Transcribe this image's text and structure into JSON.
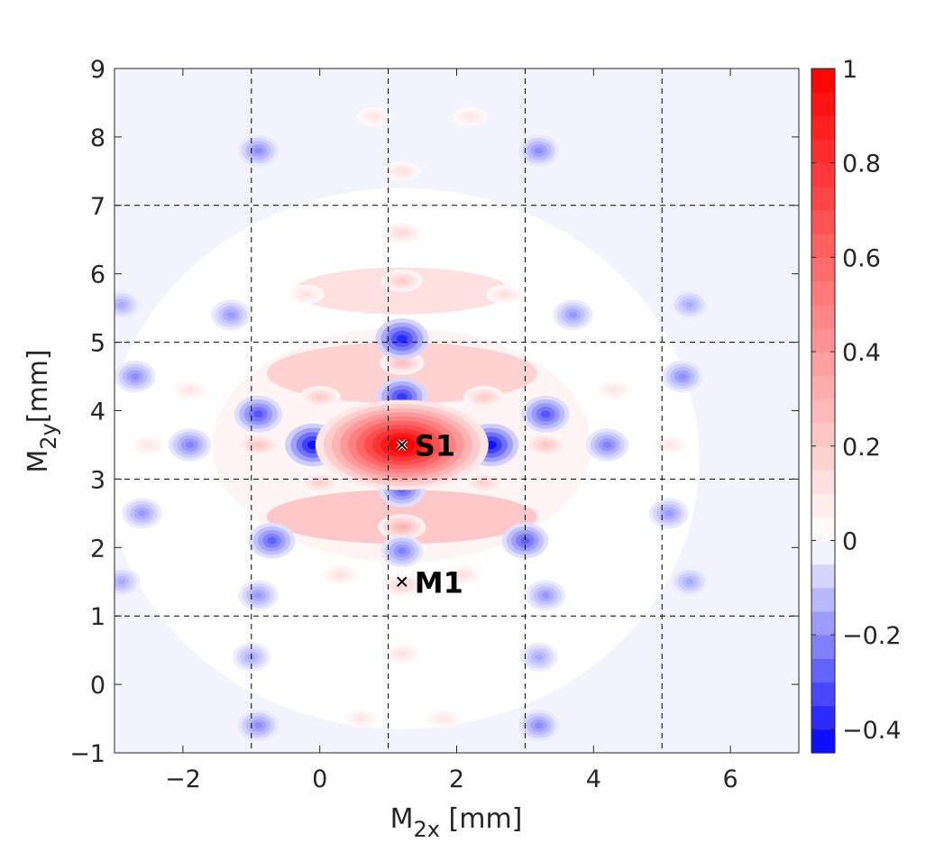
{
  "chart_data": {
    "type": "heatmap",
    "title": "",
    "xlabel": {
      "main": "M",
      "sub": "2x",
      "unit": " [mm]"
    },
    "ylabel": {
      "main": "M",
      "sub": "2y",
      "unit": "[mm]"
    },
    "xlim": [
      -3,
      7
    ],
    "ylim": [
      -1,
      9
    ],
    "xticks": [
      -2,
      0,
      2,
      4,
      6
    ],
    "yticks": [
      -1,
      0,
      1,
      2,
      3,
      4,
      5,
      6,
      7,
      8,
      9
    ],
    "xtick_labels": [
      "−2",
      "0",
      "2",
      "4",
      "6"
    ],
    "ytick_labels": [
      "−1",
      "0",
      "1",
      "2",
      "3",
      "4",
      "5",
      "6",
      "7",
      "8",
      "9"
    ],
    "dashed_grid_x": [
      -1,
      1,
      3,
      5
    ],
    "dashed_grid_y": [
      1,
      3,
      5,
      7
    ],
    "colorbar": {
      "range": [
        -0.45,
        1
      ],
      "ticks": [
        -0.4,
        -0.2,
        0,
        0.2,
        0.4,
        0.6,
        0.8,
        1
      ],
      "tick_labels": [
        "−0.4",
        "−0.2",
        "0",
        "0.2",
        "0.4",
        "0.6",
        "0.8",
        "1"
      ],
      "colormap": "blue-white-red"
    },
    "peak": {
      "x": 1.2,
      "y": 3.5,
      "value": 1
    },
    "markers": [
      {
        "label": "S1",
        "x": 1.2,
        "y": 3.5
      },
      {
        "label": "M1",
        "x": 1.2,
        "y": 1.5
      }
    ],
    "blue_blobs": [
      {
        "x": -0.1,
        "y": 3.5,
        "value": -0.42
      },
      {
        "x": 2.5,
        "y": 3.5,
        "value": -0.42
      },
      {
        "x": 1.2,
        "y": 4.2,
        "value": -0.35
      },
      {
        "x": 1.2,
        "y": 5.05,
        "value": -0.38
      },
      {
        "x": 1.2,
        "y": 2.85,
        "value": -0.28
      },
      {
        "x": 1.2,
        "y": 1.95,
        "value": -0.22
      },
      {
        "x": -0.9,
        "y": 3.95,
        "value": -0.3
      },
      {
        "x": 3.3,
        "y": 3.95,
        "value": -0.3
      },
      {
        "x": -0.7,
        "y": 2.1,
        "value": -0.28
      },
      {
        "x": 3.0,
        "y": 2.1,
        "value": -0.28
      },
      {
        "x": -1.9,
        "y": 3.5,
        "value": -0.22
      },
      {
        "x": 4.2,
        "y": 3.5,
        "value": -0.22
      },
      {
        "x": -2.7,
        "y": 4.5,
        "value": -0.2
      },
      {
        "x": 5.3,
        "y": 4.5,
        "value": -0.2
      },
      {
        "x": -2.6,
        "y": 2.5,
        "value": -0.18
      },
      {
        "x": 5.1,
        "y": 2.5,
        "value": -0.18
      },
      {
        "x": -1.3,
        "y": 5.4,
        "value": -0.18
      },
      {
        "x": 3.7,
        "y": 5.4,
        "value": -0.18
      },
      {
        "x": -0.9,
        "y": 7.8,
        "value": -0.2
      },
      {
        "x": 3.2,
        "y": 7.8,
        "value": -0.2
      },
      {
        "x": -0.9,
        "y": 1.3,
        "value": -0.18
      },
      {
        "x": 3.3,
        "y": 1.3,
        "value": -0.18
      },
      {
        "x": -0.9,
        "y": -0.6,
        "value": -0.2
      },
      {
        "x": 3.2,
        "y": -0.6,
        "value": -0.2
      },
      {
        "x": -2.9,
        "y": 1.5,
        "value": -0.15
      },
      {
        "x": 5.4,
        "y": 1.5,
        "value": -0.15
      },
      {
        "x": -1.0,
        "y": 0.4,
        "value": -0.15
      },
      {
        "x": 3.2,
        "y": 0.4,
        "value": -0.15
      },
      {
        "x": 5.4,
        "y": 5.55,
        "value": -0.15
      },
      {
        "x": -2.9,
        "y": 5.55,
        "value": -0.15
      }
    ],
    "red_blobs": [
      {
        "x": 1.2,
        "y": 4.7,
        "value": 0.25
      },
      {
        "x": 1.2,
        "y": 5.9,
        "value": 0.2
      },
      {
        "x": 1.2,
        "y": 6.6,
        "value": 0.15
      },
      {
        "x": 1.2,
        "y": 2.3,
        "value": 0.3
      },
      {
        "x": 1.2,
        "y": 1.45,
        "value": 0.18
      },
      {
        "x": 1.2,
        "y": 0.45,
        "value": 0.12
      },
      {
        "x": 1.2,
        "y": 7.5,
        "value": 0.12
      },
      {
        "x": -0.9,
        "y": 3.5,
        "value": 0.22
      },
      {
        "x": 3.3,
        "y": 3.5,
        "value": 0.22
      },
      {
        "x": 0.0,
        "y": 4.2,
        "value": 0.2
      },
      {
        "x": 2.4,
        "y": 4.2,
        "value": 0.2
      },
      {
        "x": 0.0,
        "y": 2.95,
        "value": 0.18
      },
      {
        "x": 2.4,
        "y": 2.95,
        "value": 0.18
      },
      {
        "x": -1.9,
        "y": 4.3,
        "value": 0.1
      },
      {
        "x": 4.3,
        "y": 4.3,
        "value": 0.1
      },
      {
        "x": -2.5,
        "y": 3.5,
        "value": 0.1
      },
      {
        "x": 5.1,
        "y": 3.5,
        "value": 0.1
      },
      {
        "x": 0.3,
        "y": 1.6,
        "value": 0.12
      },
      {
        "x": 2.1,
        "y": 1.6,
        "value": 0.12
      },
      {
        "x": -0.2,
        "y": 5.7,
        "value": 0.12
      },
      {
        "x": 2.7,
        "y": 5.7,
        "value": 0.12
      },
      {
        "x": 0.8,
        "y": 8.3,
        "value": 0.1
      },
      {
        "x": 2.2,
        "y": 8.3,
        "value": 0.1
      },
      {
        "x": 0.6,
        "y": -0.5,
        "value": 0.1
      },
      {
        "x": 1.8,
        "y": -0.5,
        "value": 0.1
      }
    ]
  }
}
